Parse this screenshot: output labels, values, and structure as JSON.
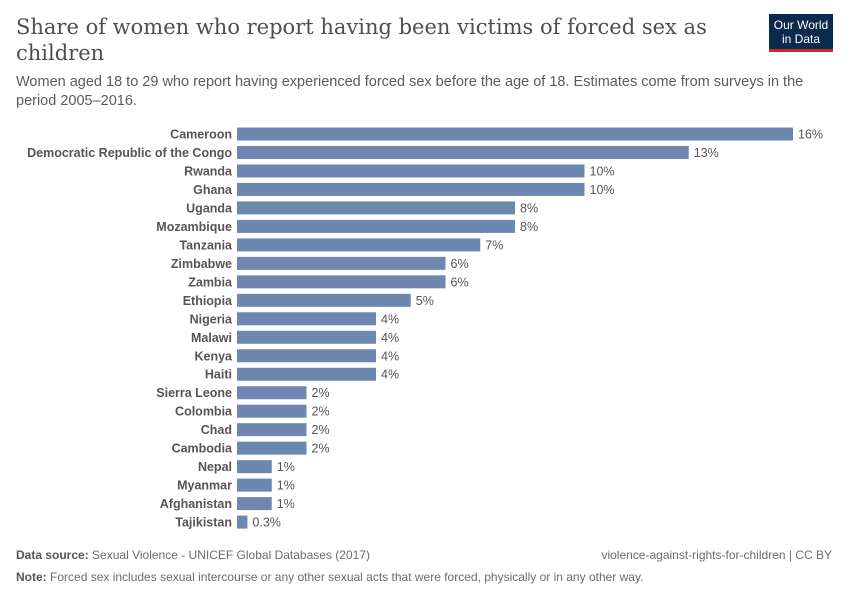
{
  "header": {
    "title": "Share of women who report having been victims of forced sex as children",
    "subtitle": "Women aged 18 to 29 who report having experienced forced sex before the age of 18. Estimates come from surveys in the period 2005–2016.",
    "logo": "Our World in Data"
  },
  "chart_data": {
    "type": "bar",
    "orientation": "horizontal",
    "bar_color": "#6d87b1",
    "categories": [
      "Cameroon",
      "Democratic Republic of the Congo",
      "Rwanda",
      "Ghana",
      "Uganda",
      "Mozambique",
      "Tanzania",
      "Zimbabwe",
      "Zambia",
      "Ethiopia",
      "Nigeria",
      "Malawi",
      "Kenya",
      "Haiti",
      "Sierra Leone",
      "Colombia",
      "Chad",
      "Cambodia",
      "Nepal",
      "Myanmar",
      "Afghanistan",
      "Tajikistan"
    ],
    "values": [
      16,
      13,
      10,
      10,
      8,
      8,
      7,
      6,
      6,
      5,
      4,
      4,
      4,
      4,
      2,
      2,
      2,
      2,
      1,
      1,
      1,
      0.3
    ],
    "labels": [
      "16%",
      "13%",
      "10%",
      "10%",
      "8%",
      "8%",
      "7%",
      "6%",
      "6%",
      "5%",
      "4%",
      "4%",
      "4%",
      "4%",
      "2%",
      "2%",
      "2%",
      "2%",
      "1%",
      "1%",
      "1%",
      "0.3%"
    ],
    "xlim": [
      0,
      16
    ]
  },
  "footer": {
    "source_label": "Data source:",
    "source": "Sexual Violence - UNICEF Global Databases (2017)",
    "slug": "violence-against-rights-for-children | CC BY",
    "note_label": "Note:",
    "note": "Forced sex includes sexual intercourse or any other sexual acts that were forced, physically or in any other way."
  }
}
